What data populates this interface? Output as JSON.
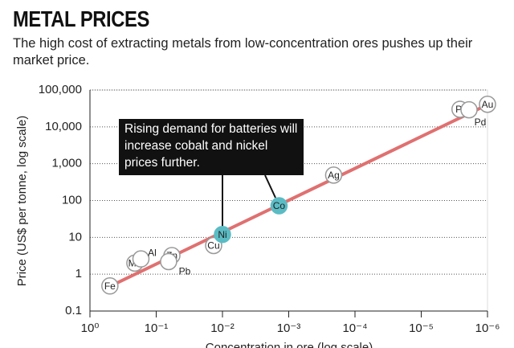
{
  "chart_data": {
    "type": "scatter",
    "title": "METAL PRICES",
    "subtitle": "The high cost of extracting metals from low-concentration ores pushes up their market price.",
    "x_label": "Concentration in ore (log scale)",
    "y_label": "Price (US$ per tonne, log scale)",
    "annotation": "Rising demand for batteries will increase cobalt and nickel prices further.",
    "x_log": true,
    "y_log": true,
    "grid": true,
    "xlim": [
      1,
      1e-06
    ],
    "xticks": [
      {
        "value": 1,
        "label": "10⁰"
      },
      {
        "value": 0.1,
        "label": "10⁻¹"
      },
      {
        "value": 0.01,
        "label": "10⁻²"
      },
      {
        "value": 0.001,
        "label": "10⁻³"
      },
      {
        "value": 0.0001,
        "label": "10⁻⁴"
      },
      {
        "value": 1e-05,
        "label": "10⁻⁵"
      },
      {
        "value": 1e-06,
        "label": "10⁻⁶"
      }
    ],
    "ylim": [
      0.1,
      100000
    ],
    "yticks": [
      0.1,
      1,
      10,
      100,
      {
        "value": 1000,
        "label": "1,000"
      },
      {
        "value": 10000,
        "label": "10,000"
      },
      {
        "value": 100000,
        "label": "100,000"
      }
    ],
    "labels": [
      "Fe",
      "Mn",
      "Al",
      "Zn",
      "Pb",
      "Cu",
      "Ni",
      "Co",
      "Ag",
      "Pt",
      "Pd",
      "Au"
    ],
    "x": [
      0.5,
      0.21,
      0.17,
      0.058,
      0.065,
      0.0136,
      0.01,
      0.0014,
      0.00021,
      2.6e-06,
      1.9e-06,
      1e-06
    ],
    "values": [
      0.48,
      2,
      2.6,
      3.2,
      2.2,
      6,
      12,
      72,
      490,
      30000,
      29000,
      41000
    ],
    "colors": [
      "#ffffff",
      "#ffffff",
      "#ffffff",
      "#ffffff",
      "#ffffff",
      "#ffffff",
      "#5bbcc4",
      "#5bbcc4",
      "#ffffff",
      "#ffffff",
      "#ffffff",
      "#ffffff"
    ],
    "trend": {
      "x": [
        0.6,
        1e-06
      ],
      "values": [
        0.4,
        40000
      ],
      "color": "#e07070"
    }
  }
}
